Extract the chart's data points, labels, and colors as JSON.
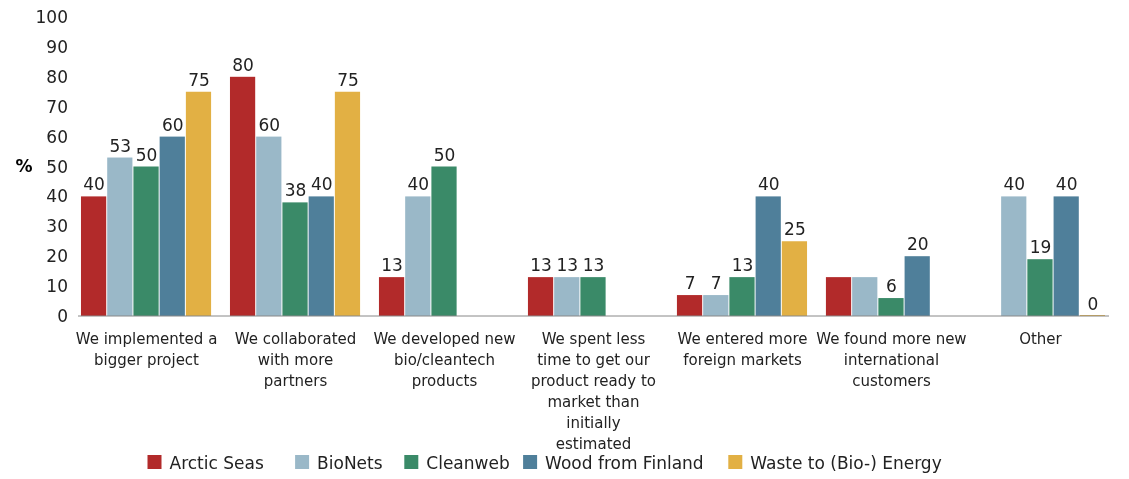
{
  "chart_data": {
    "type": "bar",
    "ylabel": "%",
    "categories": [
      "We implemented a bigger project",
      "We collaborated with more partners",
      "We developed new bio/cleantech products",
      "We spent less time to get our product ready to market than initially estimated",
      "We entered more foreign markets",
      "We found more new international customers",
      "Other"
    ],
    "series": [
      {
        "name": "Arctic Seas",
        "color": "#b22a2a",
        "values": [
          40,
          80,
          13,
          13,
          7,
          13,
          null
        ],
        "value_labels": [
          "40",
          "80",
          "13",
          "13",
          "7",
          null,
          null
        ]
      },
      {
        "name": "BioNets",
        "color": "#9ab8c8",
        "values": [
          53,
          60,
          40,
          13,
          7,
          13,
          40
        ],
        "value_labels": [
          "53",
          "60",
          "40",
          "13",
          "7",
          null,
          "40"
        ]
      },
      {
        "name": "Cleanweb",
        "color": "#3a8a68",
        "values": [
          50,
          38,
          50,
          13,
          13,
          6,
          19
        ],
        "value_labels": [
          "50",
          "38",
          "50",
          "13",
          "13",
          "6",
          "19"
        ]
      },
      {
        "name": "Wood from Finland",
        "color": "#4f7f9a",
        "values": [
          60,
          40,
          null,
          null,
          40,
          20,
          40
        ],
        "value_labels": [
          "60",
          "40",
          null,
          null,
          "40",
          "20",
          "40"
        ]
      },
      {
        "name": "Waste to (Bio-) Energy",
        "color": "#e2b044",
        "values": [
          75,
          75,
          null,
          null,
          25,
          null,
          0
        ],
        "value_labels": [
          "75",
          "75",
          null,
          null,
          "25",
          null,
          "0"
        ]
      }
    ],
    "ylim": [
      0,
      100
    ],
    "yticks": [
      0,
      10,
      20,
      30,
      40,
      50,
      60,
      70,
      80,
      90,
      100
    ],
    "legend": "bottom"
  }
}
